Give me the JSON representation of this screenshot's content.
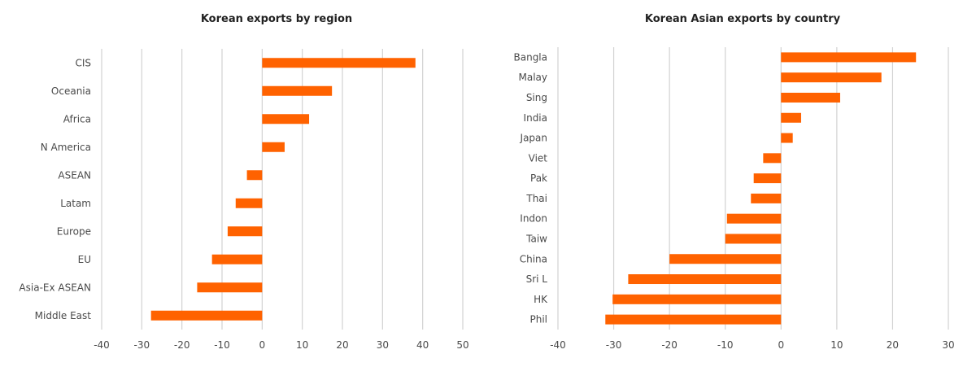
{
  "chart_data": [
    {
      "type": "bar",
      "orientation": "horizontal",
      "title": "Korean exports by region",
      "categories": [
        "CIS",
        "Oceania",
        "Africa",
        "N America",
        "ASEAN",
        "Latam",
        "Europe",
        "EU",
        "Asia-Ex ASEAN",
        "Middle East"
      ],
      "values": [
        38.2,
        17.4,
        11.7,
        5.6,
        -3.8,
        -6.6,
        -8.6,
        -12.5,
        -16.2,
        -27.7
      ],
      "xlim": [
        -40,
        50
      ],
      "ticks": [
        -40,
        -30,
        -20,
        -10,
        0,
        10,
        20,
        30,
        40,
        50
      ],
      "tick_labels": [
        "-40",
        "-30",
        "-20",
        "-10",
        "0",
        "10",
        "20",
        "30",
        "40",
        "50"
      ],
      "grid": "vertical",
      "bar_color": "#ff6200"
    },
    {
      "type": "bar",
      "orientation": "horizontal",
      "title": "Korean Asian exports by country",
      "categories": [
        "Bangla",
        "Malay",
        "Sing",
        "India",
        "Japan",
        "Viet",
        "Pak",
        "Thai",
        "Indon",
        "Taiw",
        "China",
        "Sri L",
        "HK",
        "Phil"
      ],
      "values": [
        24.2,
        18.0,
        10.6,
        3.6,
        2.1,
        -3.2,
        -4.9,
        -5.4,
        -9.7,
        -10.0,
        -20.0,
        -27.4,
        -30.2,
        -31.5
      ],
      "xlim": [
        -40,
        30
      ],
      "ticks": [
        -40,
        -30,
        -20,
        -10,
        0,
        10,
        20,
        30
      ],
      "tick_labels": [
        "-40",
        "-30",
        "-20",
        "-10",
        "0",
        "10",
        "20",
        "30"
      ],
      "grid": "vertical",
      "bar_color": "#ff6200"
    }
  ]
}
